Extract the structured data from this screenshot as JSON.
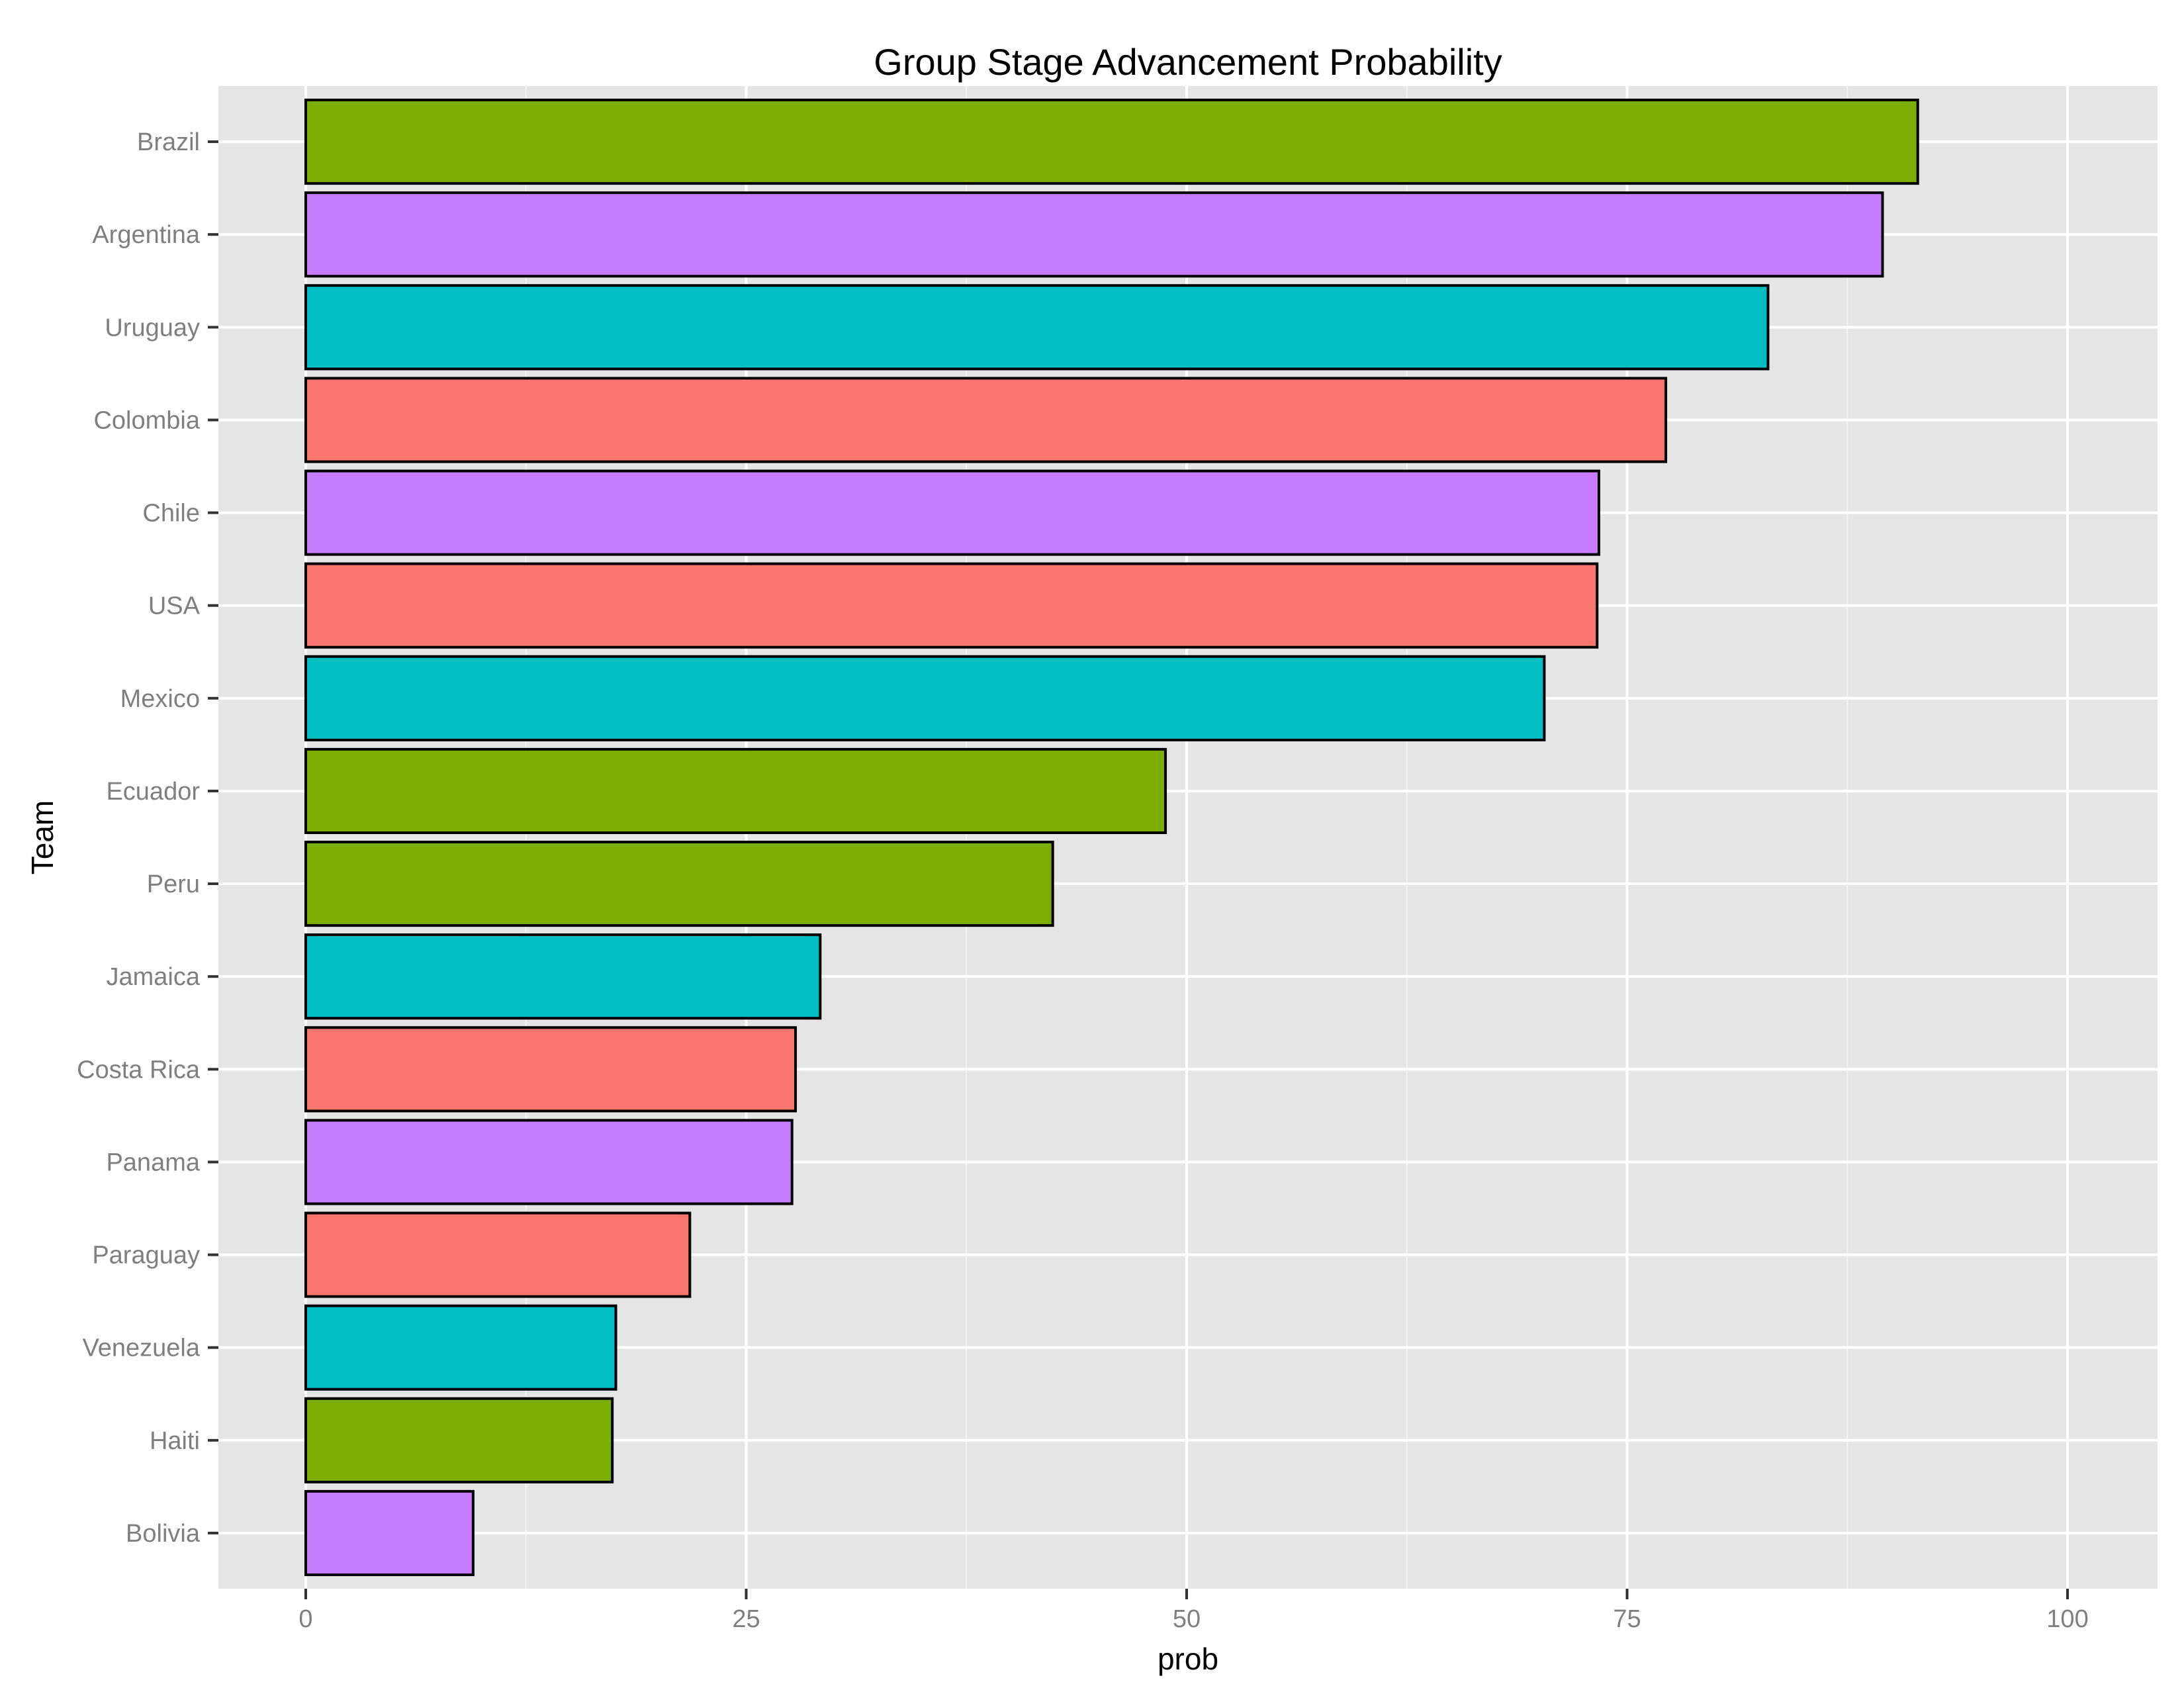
{
  "chart_data": {
    "type": "bar",
    "orientation": "horizontal",
    "title": "Group Stage Advancement Probability",
    "xlabel": "prob",
    "ylabel": "Team",
    "xlim": [
      0,
      100
    ],
    "xticks": [
      0,
      25,
      50,
      75,
      100
    ],
    "grid": true,
    "legend": "none",
    "categories": [
      "Brazil",
      "Argentina",
      "Uruguay",
      "Colombia",
      "Chile",
      "USA",
      "Mexico",
      "Ecuador",
      "Peru",
      "Jamaica",
      "Costa Rica",
      "Panama",
      "Paraguay",
      "Venezuela",
      "Haiti",
      "Bolivia"
    ],
    "values": [
      91.5,
      89.5,
      83.0,
      77.2,
      73.4,
      73.3,
      70.3,
      48.8,
      42.4,
      29.2,
      27.8,
      27.6,
      21.8,
      17.6,
      17.4,
      9.5
    ],
    "bar_colors": [
      "#7CAE00",
      "#C77CFF",
      "#00BFC4",
      "#F8766D",
      "#C77CFF",
      "#F8766D",
      "#00BFC4",
      "#7CAE00",
      "#7CAE00",
      "#00BFC4",
      "#F8766D",
      "#C77CFF",
      "#F8766D",
      "#00BFC4",
      "#7CAE00",
      "#C77CFF"
    ]
  },
  "colors": {
    "panel_background": "#E5E5E5",
    "grid_line": "#FFFFFF",
    "bar_outline": "#000000"
  }
}
